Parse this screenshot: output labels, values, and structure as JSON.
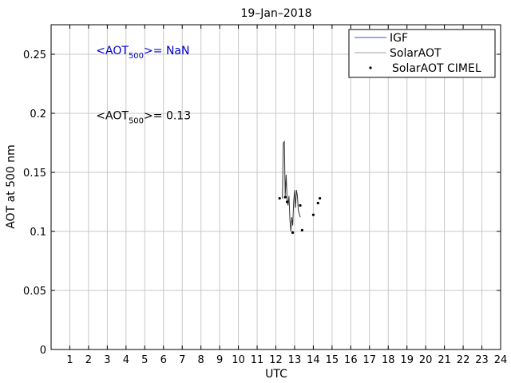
{
  "chart_data": {
    "type": "line",
    "title": "19–Jan–2018",
    "xlabel": "UTC",
    "ylabel": "AOT at 500 nm",
    "xlim": [
      0,
      24
    ],
    "ylim": [
      0,
      0.275
    ],
    "x_ticks": [
      1,
      2,
      3,
      4,
      5,
      6,
      7,
      8,
      9,
      10,
      11,
      12,
      13,
      14,
      15,
      16,
      17,
      18,
      19,
      20,
      21,
      22,
      23,
      24
    ],
    "x_tick_labels": [
      "1",
      "2",
      "3",
      "4",
      "5",
      "6",
      "7",
      "8",
      "9",
      "10",
      "11",
      "12",
      "13",
      "14",
      "15",
      "16",
      "17",
      "18",
      "19",
      "20",
      "21",
      "22",
      "23",
      "24"
    ],
    "y_ticks": [
      0,
      0.05,
      0.1,
      0.15,
      0.2,
      0.25
    ],
    "y_tick_labels": [
      "0",
      "0.05",
      "0.1",
      "0.15",
      "0.2",
      "0.25"
    ],
    "grid": true,
    "legend": {
      "placement": "top-right",
      "entries": [
        {
          "label": "IGF",
          "color": "#3b4fe0",
          "style": "line"
        },
        {
          "label": "SolarAOT",
          "color": "#a0a0a0",
          "style": "line"
        },
        {
          "label": "SolarAOT CIMEL",
          "color": "#000000",
          "style": "marker"
        }
      ]
    },
    "annotations": [
      {
        "prefix": "<AOT",
        "subscript": "500",
        "suffix": ">=  NaN",
        "color": "#0000cc",
        "x": 2.4,
        "y": 0.25
      },
      {
        "prefix": "<AOT",
        "subscript": "500",
        "suffix": ">= 0.13",
        "color": "#000000",
        "x": 2.4,
        "y": 0.195
      }
    ],
    "series": [
      {
        "name": "IGF",
        "color": "#3b4fe0",
        "x": [],
        "y": []
      },
      {
        "name": "SolarAOT",
        "color": "#333333",
        "x": [
          12.35,
          12.4,
          12.45,
          12.5,
          12.55,
          12.6,
          12.65,
          12.7,
          12.75,
          12.8,
          12.85,
          12.9,
          12.95,
          13.0,
          13.05,
          13.1,
          13.15,
          13.2,
          13.25,
          13.3
        ],
        "y": [
          0.128,
          0.175,
          0.176,
          0.13,
          0.148,
          0.127,
          0.122,
          0.13,
          0.11,
          0.1,
          0.112,
          0.105,
          0.125,
          0.135,
          0.12,
          0.135,
          0.13,
          0.118,
          0.115,
          0.112
        ]
      },
      {
        "name": "SolarAOT CIMEL",
        "color": "#000000",
        "x": [
          12.2,
          12.5,
          12.6,
          12.9,
          13.4,
          13.3,
          14.0,
          14.25,
          14.35
        ],
        "y": [
          0.128,
          0.129,
          0.125,
          0.099,
          0.101,
          0.122,
          0.114,
          0.124,
          0.128
        ]
      }
    ]
  }
}
